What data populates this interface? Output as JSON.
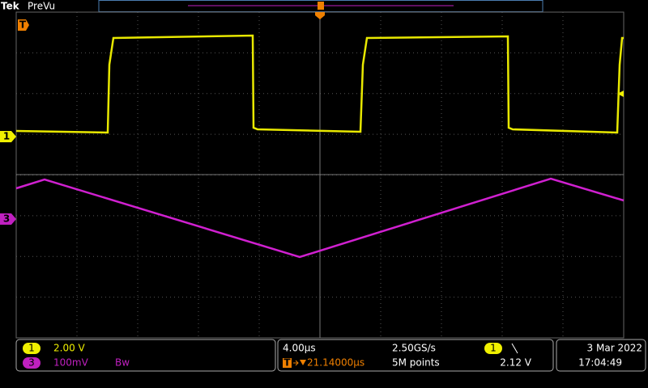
{
  "header": {
    "brand": "Tek",
    "mode": "PreVu"
  },
  "markers": {
    "trigger_position": "T",
    "ch1": "1",
    "ch3": "3"
  },
  "status": {
    "ch1": {
      "badge": "1",
      "scale": "2.00 V"
    },
    "ch3": {
      "badge": "3",
      "scale": "100mV",
      "bandwidth": "Bw"
    },
    "horizontal": {
      "scale": "4.00μs",
      "sample_rate": "2.50GS/s",
      "trigger_badge": "T",
      "delay": "21.14000μs",
      "record": "5M points"
    },
    "trigger": {
      "source": "1",
      "level": "2.12 V"
    },
    "date": "3 Mar 2022",
    "time": "17:04:49"
  }
}
